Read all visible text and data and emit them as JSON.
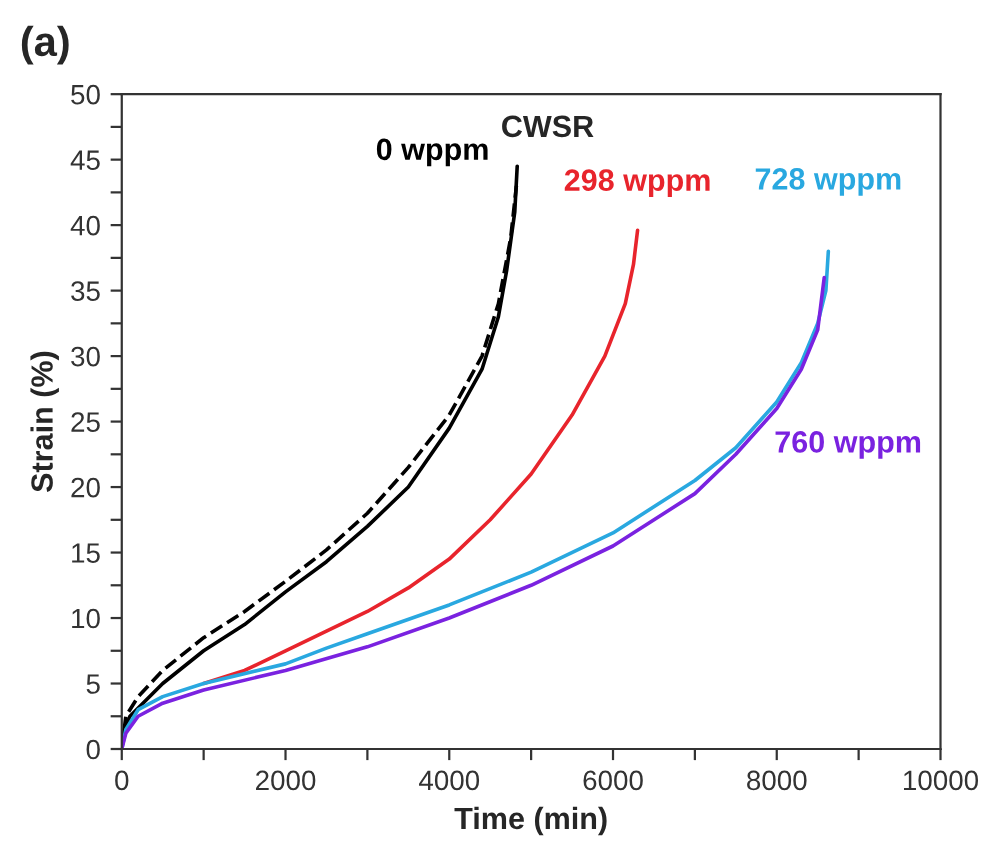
{
  "chart_data": {
    "type": "line",
    "title": "(a)",
    "xlabel": "Time (min)",
    "ylabel": "Strain (%)",
    "xlim": [
      0,
      10000
    ],
    "ylim": [
      0,
      50
    ],
    "xticks": [
      0,
      {
        "value": 1000,
        "label": null
      },
      2000,
      {
        "value": 3000,
        "label": null
      },
      4000,
      {
        "value": 5000,
        "label": null
      },
      6000,
      {
        "value": 7000,
        "label": null
      },
      8000,
      {
        "value": 9000,
        "label": null
      },
      10000
    ],
    "yticks": [
      0,
      {
        "value": 2.5,
        "label": null
      },
      5,
      {
        "value": 7.5,
        "label": null
      },
      10,
      {
        "value": 12.5,
        "label": null
      },
      15,
      {
        "value": 17.5,
        "label": null
      },
      20,
      {
        "value": 22.5,
        "label": null
      },
      25,
      {
        "value": 27.5,
        "label": null
      },
      30,
      {
        "value": 32.5,
        "label": null
      },
      35,
      {
        "value": 37.5,
        "label": null
      },
      40,
      {
        "value": 42.5,
        "label": null
      },
      45,
      {
        "value": 47.5,
        "label": null
      },
      50
    ],
    "grid": false,
    "legend": false,
    "series": [
      {
        "name": "0 wppm",
        "color": "#000000",
        "line_style": "solid",
        "x": [
          0,
          30,
          100,
          500,
          1000,
          1500,
          2000,
          2500,
          3000,
          3500,
          4000,
          4400,
          4600,
          4700,
          4800,
          4830
        ],
        "values": [
          0,
          1.5,
          2.5,
          5,
          7.5,
          9.5,
          12,
          14.3,
          17,
          20,
          24.5,
          29,
          33,
          36.5,
          41,
          44.5
        ]
      },
      {
        "color": "#000000",
        "line_style": "dashed",
        "x": [
          0,
          50,
          200,
          500,
          1000,
          1500,
          2000,
          2500,
          3000,
          3500,
          4000,
          4400,
          4600,
          4750,
          4820
        ],
        "values": [
          0,
          2.5,
          4,
          6,
          8.5,
          10.5,
          12.8,
          15.2,
          18,
          21.5,
          25.5,
          30,
          34,
          39,
          43
        ]
      },
      {
        "name": "298 wppm",
        "color": "#e8242c",
        "line_style": "solid",
        "x": [
          1000,
          1500,
          2000,
          2500,
          3000,
          3500,
          4000,
          4500,
          5000,
          5500,
          5900,
          6150,
          6250,
          6300
        ],
        "values": [
          5,
          6,
          7.5,
          9,
          10.5,
          12.3,
          14.5,
          17.5,
          21,
          25.5,
          30,
          34,
          37,
          39.6
        ]
      },
      {
        "name": "728 wppm",
        "color": "#29a8e0",
        "line_style": "solid",
        "x": [
          0,
          50,
          200,
          500,
          1000,
          2000,
          2500,
          3000,
          4000,
          5000,
          6000,
          7000,
          7500,
          8000,
          8300,
          8500,
          8600,
          8630
        ],
        "values": [
          0,
          1.5,
          3,
          4,
          5,
          6.5,
          7.7,
          8.8,
          11,
          13.5,
          16.5,
          20.5,
          23,
          26.5,
          29.5,
          32.5,
          35,
          38
        ]
      },
      {
        "name": "760 wppm",
        "color": "#7a22e0",
        "line_style": "solid",
        "x": [
          0,
          50,
          200,
          500,
          1000,
          2000,
          3000,
          4000,
          5000,
          6000,
          7000,
          7500,
          8000,
          8300,
          8500,
          8580
        ],
        "values": [
          0,
          1.2,
          2.5,
          3.5,
          4.5,
          6,
          7.8,
          10,
          12.5,
          15.5,
          19.5,
          22.5,
          26,
          29,
          32,
          36
        ]
      }
    ],
    "annotations": [
      "CWSR"
    ]
  }
}
